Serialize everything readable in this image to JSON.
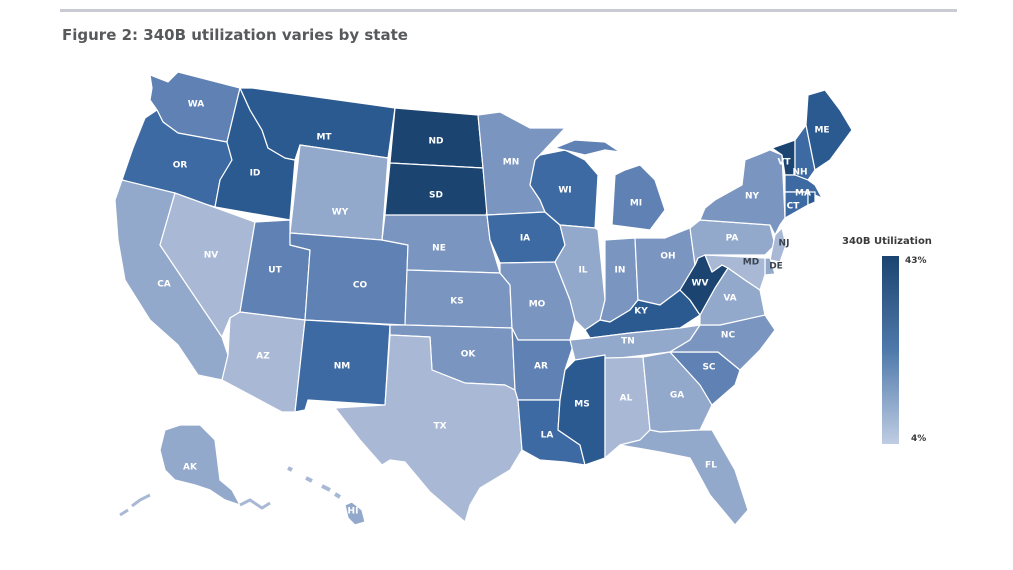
{
  "figure": {
    "title": "Figure 2: 340B utilization varies by state"
  },
  "legend": {
    "title": "340B Utilization",
    "max_label": "43%",
    "min_label": "4%",
    "color_high": "#1c4470",
    "color_mid": "#4f79ab",
    "color_low": "#bfcde3"
  },
  "colors": {
    "c1": "#a9b9d5",
    "c2": "#93a9cb",
    "c3": "#7a95c0",
    "c4": "#5f81b3",
    "c5": "#3d6aa2",
    "c6": "#2b5a90",
    "c7": "#1c4470"
  },
  "states": [
    {
      "abbr": "WA",
      "level": 4
    },
    {
      "abbr": "OR",
      "level": 5
    },
    {
      "abbr": "CA",
      "level": 2
    },
    {
      "abbr": "NV",
      "level": 1
    },
    {
      "abbr": "ID",
      "level": 6
    },
    {
      "abbr": "MT",
      "level": 6
    },
    {
      "abbr": "WY",
      "level": 2
    },
    {
      "abbr": "UT",
      "level": 4
    },
    {
      "abbr": "AZ",
      "level": 1
    },
    {
      "abbr": "CO",
      "level": 4
    },
    {
      "abbr": "NM",
      "level": 5
    },
    {
      "abbr": "ND",
      "level": 7
    },
    {
      "abbr": "SD",
      "level": 7
    },
    {
      "abbr": "NE",
      "level": 3
    },
    {
      "abbr": "KS",
      "level": 3
    },
    {
      "abbr": "OK",
      "level": 3
    },
    {
      "abbr": "TX",
      "level": 1
    },
    {
      "abbr": "MN",
      "level": 3
    },
    {
      "abbr": "IA",
      "level": 5
    },
    {
      "abbr": "MO",
      "level": 3
    },
    {
      "abbr": "AR",
      "level": 4
    },
    {
      "abbr": "LA",
      "level": 5
    },
    {
      "abbr": "WI",
      "level": 5
    },
    {
      "abbr": "IL",
      "level": 2
    },
    {
      "abbr": "MI",
      "level": 4
    },
    {
      "abbr": "IN",
      "level": 3
    },
    {
      "abbr": "OH",
      "level": 3
    },
    {
      "abbr": "KY",
      "level": 6
    },
    {
      "abbr": "TN",
      "level": 2
    },
    {
      "abbr": "MS",
      "level": 6
    },
    {
      "abbr": "AL",
      "level": 1
    },
    {
      "abbr": "GA",
      "level": 2
    },
    {
      "abbr": "FL",
      "level": 2
    },
    {
      "abbr": "SC",
      "level": 4
    },
    {
      "abbr": "NC",
      "level": 3
    },
    {
      "abbr": "VA",
      "level": 2
    },
    {
      "abbr": "WV",
      "level": 7
    },
    {
      "abbr": "PA",
      "level": 2
    },
    {
      "abbr": "NY",
      "level": 3
    },
    {
      "abbr": "VT",
      "level": 7
    },
    {
      "abbr": "NH",
      "level": 5
    },
    {
      "abbr": "ME",
      "level": 6
    },
    {
      "abbr": "MA",
      "level": 5
    },
    {
      "abbr": "CT",
      "level": 5
    },
    {
      "abbr": "RI",
      "level": 6
    },
    {
      "abbr": "NJ",
      "level": 1
    },
    {
      "abbr": "DE",
      "level": 2
    },
    {
      "abbr": "MD",
      "level": 1
    },
    {
      "abbr": "AK",
      "level": 2
    },
    {
      "abbr": "HI",
      "level": 2
    }
  ]
}
